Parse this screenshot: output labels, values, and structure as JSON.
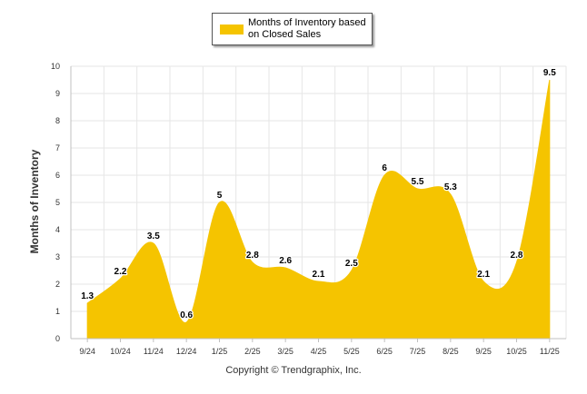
{
  "chart_data": {
    "type": "area",
    "categories": [
      "9/24",
      "10/24",
      "11/24",
      "12/24",
      "1/25",
      "2/25",
      "3/25",
      "4/25",
      "5/25",
      "6/25",
      "7/25",
      "8/25",
      "9/25",
      "10/25",
      "11/25"
    ],
    "series": [
      {
        "name": "Months of Inventory based on Closed Sales",
        "values": [
          1.3,
          2.2,
          3.5,
          0.6,
          5,
          2.8,
          2.6,
          2.1,
          2.5,
          6,
          5.5,
          5.3,
          2.1,
          2.8,
          9.5
        ]
      }
    ],
    "data_labels": [
      "1.3",
      "2.2",
      "3.5",
      "0.6",
      "5",
      "2.8",
      "2.6",
      "2.1",
      "2.5",
      "6",
      "5.5",
      "5.3",
      "2.1",
      "2.8",
      "9.5"
    ],
    "ylabel": "Months of Inventory",
    "ylim": [
      0,
      10
    ],
    "yticks": [
      0,
      1,
      2,
      3,
      4,
      5,
      6,
      7,
      8,
      9,
      10
    ],
    "grid": true,
    "legend_position": "top-center",
    "colors": {
      "fill": "#f5c400",
      "grid": "#e6e6e6",
      "axis": "#c0c0c0"
    }
  },
  "legend": {
    "label": "Months of Inventory based on Closed Sales"
  },
  "footer": {
    "copyright": "Copyright © Trendgraphix, Inc."
  }
}
